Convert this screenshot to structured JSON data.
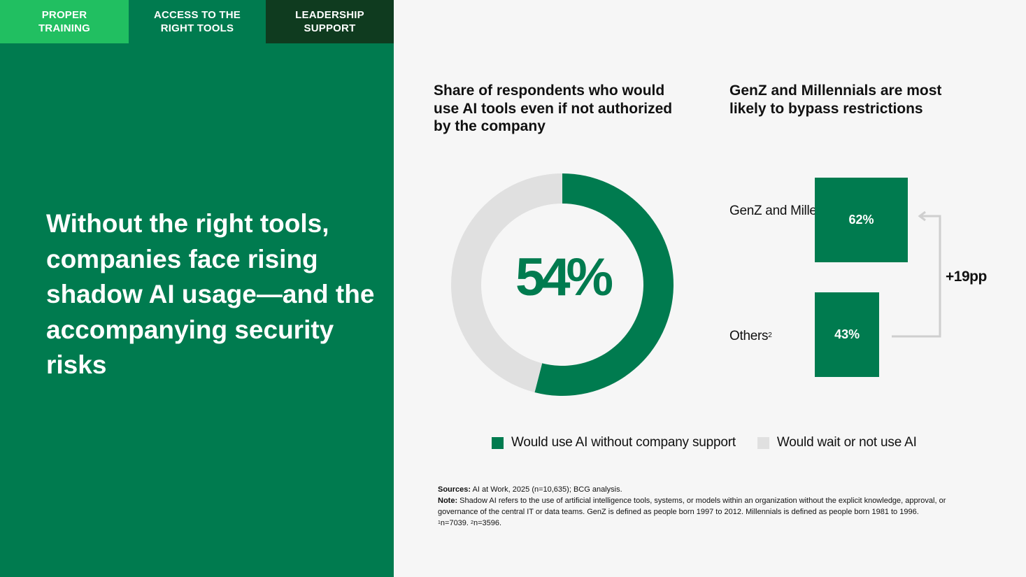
{
  "tabs": [
    {
      "label": "PROPER\nTRAINING",
      "color": "#21bf61"
    },
    {
      "label": "ACCESS TO THE\nRIGHT TOOLS",
      "color": "#007b4f"
    },
    {
      "label": "LEADERSHIP\nSUPPORT",
      "color": "#0f3b1f"
    }
  ],
  "headline": "Without the right tools, companies face rising shadow AI usage—and the accompanying security risks",
  "colors": {
    "primary": "#007b4f",
    "neutral": "#e0e0e0",
    "panel": "#007b4f",
    "accent_light": "#21bf61",
    "accent_dark": "#0f3b1f"
  },
  "chart_data": [
    {
      "type": "pie",
      "title": "Share of respondents who would use AI tools even if not authorized by the company",
      "center_label": "54%",
      "slices": [
        {
          "name": "Would use AI without company support",
          "value": 54,
          "color": "#007b4f"
        },
        {
          "name": "Would wait or not use AI",
          "value": 46,
          "color": "#e0e0e0"
        }
      ],
      "legend": {
        "placement": "bottom"
      }
    },
    {
      "type": "bar",
      "orientation": "horizontal",
      "title": "GenZ and Millennials are most likely to bypass restrictions",
      "categories": [
        {
          "label": "GenZ and Millennials",
          "note": "1"
        },
        {
          "label": "Others",
          "note": "2"
        }
      ],
      "values": [
        62,
        43
      ],
      "value_labels": [
        "62%",
        "43%"
      ],
      "difference_label": "+19pp",
      "xlim": [
        0,
        62
      ],
      "color": "#007b4f"
    }
  ],
  "footnotes": {
    "sources_label": "Sources:",
    "sources_text": "AI at Work, 2025 (n=10,635); BCG analysis.",
    "note_label": "Note:",
    "note_text": "Shadow AI refers to the use of artificial intelligence tools, systems, or models within an organization without the explicit knowledge, approval, or governance of the central IT or data teams. GenZ is defined as people born 1997 to 2012. Millennials is defined as people born 1981 to 1996.",
    "n1_mark": "1",
    "n1_text": "n=7039.",
    "n2_mark": "2",
    "n2_text": "n=3596."
  }
}
